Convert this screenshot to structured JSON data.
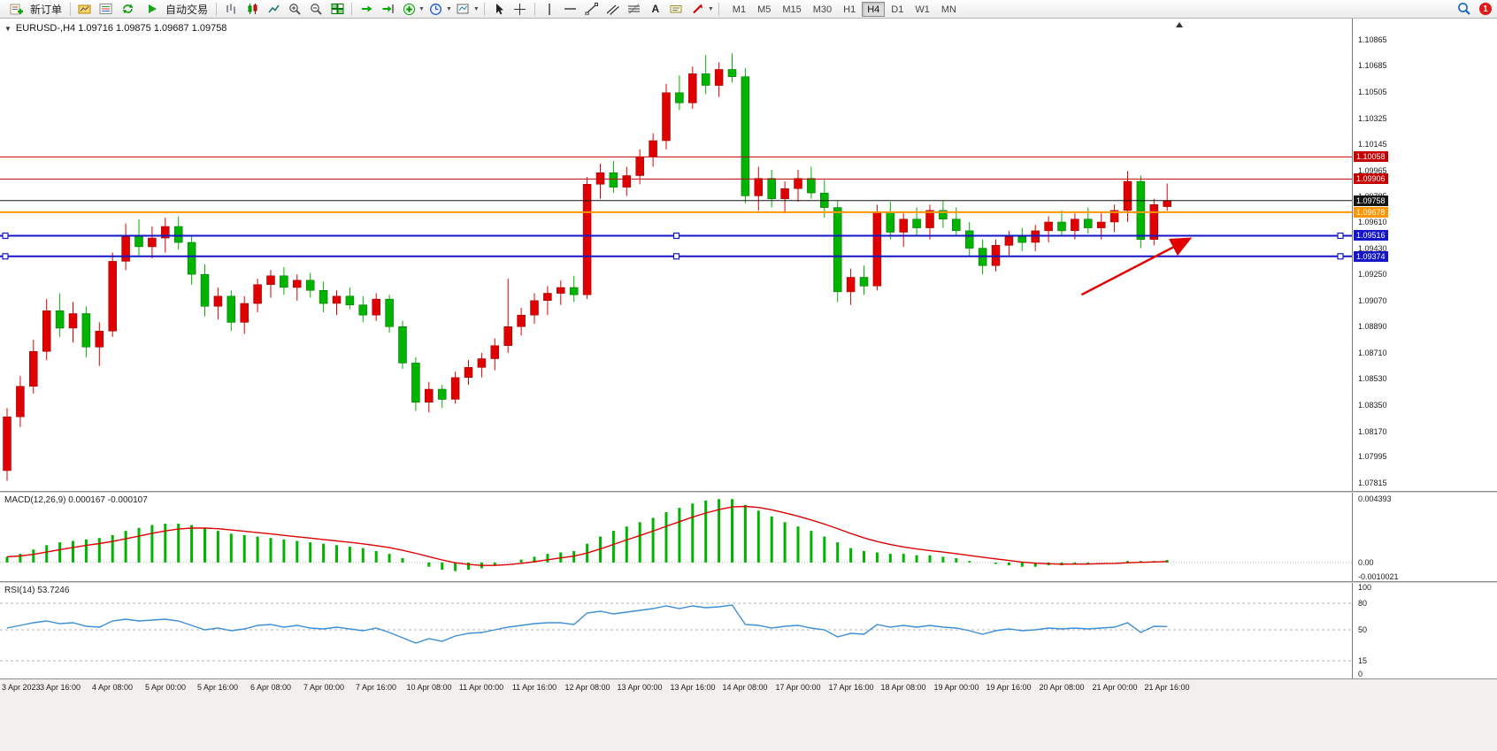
{
  "toolbar": {
    "new_order_label": "新订单",
    "autotrade_label": "自动交易",
    "timeframes": [
      "M1",
      "M5",
      "M15",
      "M30",
      "H1",
      "H4",
      "D1",
      "W1",
      "MN"
    ],
    "active_timeframe": "H4",
    "notification_count": "1",
    "icon_names": [
      "new-order-icon",
      "profiles-icon",
      "market-watch-icon",
      "refresh-icon",
      "autotrade-play-icon",
      "bar-chart-icon",
      "candlestick-chart-icon",
      "line-chart-icon",
      "zoom-in-icon",
      "zoom-out-icon",
      "tile-windows-icon",
      "auto-scroll-icon",
      "shift-chart-icon",
      "indicators-icon",
      "periods-icon",
      "templates-icon",
      "cursor-icon",
      "crosshair-icon",
      "vertical-line-icon",
      "horizontal-line-icon",
      "trendline-icon",
      "equidistant-channel-icon",
      "fibonacci-icon",
      "text-icon",
      "text-label-icon",
      "arrows-dropdown-icon",
      "search-icon"
    ]
  },
  "chart": {
    "header": "EURUSD-,H4  1.09716 1.09875 1.09687 1.09758"
  },
  "chart_data": [
    {
      "type": "candlestick",
      "title": "EURUSD- H4",
      "symbol": "EURUSD-",
      "period": "H4",
      "ohlc_display": {
        "open": 1.09716,
        "high": 1.09875,
        "low": 1.09687,
        "close": 1.09758
      },
      "ylim": [
        1.0776,
        1.1101
      ],
      "grid": false,
      "bull_color": "#e00000",
      "bear_color": "#00b400",
      "y_ticks": [
        "1.10865",
        "1.10685",
        "1.10505",
        "1.10325",
        "1.10145",
        "1.09965",
        "1.09785",
        "1.09610",
        "1.09430",
        "1.09250",
        "1.09070",
        "1.08890",
        "1.08710",
        "1.08530",
        "1.08350",
        "1.08170",
        "1.07995",
        "1.07815"
      ],
      "x_labels": [
        "3 Apr 2023",
        "3 Apr 16:00",
        "4 Apr 08:00",
        "5 Apr 00:00",
        "5 Apr 16:00",
        "6 Apr 08:00",
        "7 Apr 00:00",
        "7 Apr 16:00",
        "10 Apr 08:00",
        "11 Apr 00:00",
        "11 Apr 16:00",
        "12 Apr 08:00",
        "13 Apr 00:00",
        "13 Apr 16:00",
        "14 Apr 08:00",
        "17 Apr 00:00",
        "17 Apr 16:00",
        "18 Apr 08:00",
        "19 Apr 00:00",
        "19 Apr 16:00",
        "20 Apr 08:00",
        "21 Apr 00:00",
        "21 Apr 16:00"
      ],
      "hlines": [
        {
          "price": 1.10058,
          "label": "1.10058",
          "color": "#c40000",
          "width": 1,
          "selected": false
        },
        {
          "price": 1.09906,
          "label": "1.09906",
          "color": "#c40000",
          "width": 1,
          "selected": false
        },
        {
          "price": 1.09758,
          "label": "1.09758",
          "color": "#151515",
          "width": 1,
          "selected": false
        },
        {
          "price": 1.09678,
          "label": "1.09678",
          "color": "#ff9500",
          "width": 2,
          "selected": false
        },
        {
          "price": 1.09516,
          "label": "1.09516",
          "color": "#1616c8",
          "width": 2,
          "selected": true
        },
        {
          "price": 1.09374,
          "label": "1.09374",
          "color": "#1616c8",
          "width": 2,
          "selected": true
        }
      ],
      "arrow": {
        "x1_index": 81.5,
        "y1_price": 1.0911,
        "x2_index": 89.6,
        "y2_price": 1.0949,
        "color": "#e00000"
      },
      "candles": [
        [
          1.079,
          1.0833,
          1.0783,
          1.0827
        ],
        [
          1.0827,
          1.0855,
          1.082,
          1.0848
        ],
        [
          1.0848,
          1.088,
          1.0843,
          1.0872
        ],
        [
          1.0872,
          1.0908,
          1.0866,
          1.09
        ],
        [
          1.09,
          1.0912,
          1.0882,
          1.0888
        ],
        [
          1.0888,
          1.0906,
          1.0878,
          1.0898
        ],
        [
          1.0898,
          1.0903,
          1.0868,
          1.0875
        ],
        [
          1.0875,
          1.0892,
          1.0862,
          1.0886
        ],
        [
          1.0886,
          1.094,
          1.0882,
          1.0934
        ],
        [
          1.0934,
          1.096,
          1.0928,
          1.0952
        ],
        [
          1.0952,
          1.0963,
          1.0938,
          1.0944
        ],
        [
          1.0944,
          1.0958,
          1.0936,
          1.095
        ],
        [
          1.095,
          1.0964,
          1.094,
          1.0958
        ],
        [
          1.0958,
          1.0965,
          1.0942,
          1.0947
        ],
        [
          1.0947,
          1.0952,
          1.0918,
          1.0925
        ],
        [
          1.0925,
          1.0932,
          1.0896,
          1.0903
        ],
        [
          1.0903,
          1.0916,
          1.0894,
          1.091
        ],
        [
          1.091,
          1.0914,
          1.0886,
          1.0892
        ],
        [
          1.0892,
          1.091,
          1.0884,
          1.0905
        ],
        [
          1.0905,
          1.0922,
          1.0899,
          1.0918
        ],
        [
          1.0918,
          1.0928,
          1.0909,
          1.0924
        ],
        [
          1.0924,
          1.093,
          1.0911,
          1.0916
        ],
        [
          1.0916,
          1.0925,
          1.0907,
          1.0921
        ],
        [
          1.0921,
          1.0926,
          1.0909,
          1.0914
        ],
        [
          1.0914,
          1.092,
          1.0899,
          1.0905
        ],
        [
          1.0905,
          1.0914,
          1.0897,
          1.091
        ],
        [
          1.091,
          1.0916,
          1.0901,
          1.0904
        ],
        [
          1.0904,
          1.091,
          1.0892,
          1.0897
        ],
        [
          1.0897,
          1.0912,
          1.0893,
          1.0908
        ],
        [
          1.0908,
          1.0911,
          1.0885,
          1.0889
        ],
        [
          1.0889,
          1.0893,
          1.086,
          1.0864
        ],
        [
          1.0864,
          1.0868,
          1.0831,
          1.0837
        ],
        [
          1.0837,
          1.0851,
          1.083,
          1.0846
        ],
        [
          1.0846,
          1.0849,
          1.0833,
          1.0839
        ],
        [
          1.0839,
          1.0858,
          1.0836,
          1.0854
        ],
        [
          1.0854,
          1.0866,
          1.0849,
          1.0861
        ],
        [
          1.0861,
          1.0871,
          1.0854,
          1.0867
        ],
        [
          1.0867,
          1.0881,
          1.0859,
          1.0876
        ],
        [
          1.0876,
          1.0922,
          1.0871,
          1.0889
        ],
        [
          1.0889,
          1.0902,
          1.0883,
          1.0897
        ],
        [
          1.0897,
          1.0912,
          1.0891,
          1.0907
        ],
        [
          1.0907,
          1.0917,
          1.0897,
          1.0912
        ],
        [
          1.0912,
          1.0921,
          1.0904,
          1.0916
        ],
        [
          1.0916,
          1.0924,
          1.0906,
          1.0911
        ],
        [
          1.0911,
          1.0992,
          1.0908,
          1.0987
        ],
        [
          1.0987,
          1.1001,
          1.0977,
          1.0995
        ],
        [
          1.0995,
          1.1003,
          1.0981,
          1.0985
        ],
        [
          1.0985,
          1.0999,
          1.0979,
          1.0993
        ],
        [
          1.0993,
          1.1011,
          1.0987,
          1.1006
        ],
        [
          1.1006,
          1.1022,
          1.0999,
          1.1017
        ],
        [
          1.1017,
          1.1056,
          1.1011,
          1.105
        ],
        [
          1.105,
          1.1062,
          1.1038,
          1.1043
        ],
        [
          1.1043,
          1.1068,
          1.1039,
          1.1063
        ],
        [
          1.1063,
          1.1076,
          1.1049,
          1.1055
        ],
        [
          1.1055,
          1.1071,
          1.1047,
          1.1066
        ],
        [
          1.1066,
          1.1077,
          1.1057,
          1.1061
        ],
        [
          1.1061,
          1.1067,
          1.0974,
          1.0979
        ],
        [
          1.0979,
          1.0999,
          1.0969,
          1.0991
        ],
        [
          1.0991,
          1.0997,
          1.0971,
          1.0977
        ],
        [
          1.0977,
          1.0989,
          1.0967,
          1.0984
        ],
        [
          1.0984,
          1.0997,
          1.0975,
          1.0991
        ],
        [
          1.0991,
          1.0999,
          1.0977,
          1.0981
        ],
        [
          1.0981,
          1.099,
          1.0964,
          1.0971
        ],
        [
          1.0971,
          1.0976,
          1.0906,
          1.0913
        ],
        [
          1.0913,
          1.0929,
          1.0904,
          1.0923
        ],
        [
          1.0923,
          1.0931,
          1.0911,
          1.0917
        ],
        [
          1.0917,
          1.0973,
          1.0914,
          1.0968
        ],
        [
          1.0968,
          1.0975,
          1.0949,
          1.0954
        ],
        [
          1.0954,
          1.0967,
          1.0944,
          1.0963
        ],
        [
          1.0963,
          1.0971,
          1.0951,
          1.0957
        ],
        [
          1.0957,
          1.0973,
          1.0949,
          1.0969
        ],
        [
          1.0969,
          1.0976,
          1.0957,
          1.0963
        ],
        [
          1.0963,
          1.0971,
          1.0951,
          1.0955
        ],
        [
          1.0955,
          1.0961,
          1.0937,
          1.0943
        ],
        [
          1.0943,
          1.0949,
          1.0925,
          1.0931
        ],
        [
          1.0931,
          1.0949,
          1.0927,
          1.0945
        ],
        [
          1.0945,
          1.0955,
          1.0937,
          1.0951
        ],
        [
          1.0951,
          1.0957,
          1.0941,
          1.0947
        ],
        [
          1.0947,
          1.0959,
          1.0941,
          1.0955
        ],
        [
          1.0955,
          1.0965,
          1.0947,
          1.0961
        ],
        [
          1.0961,
          1.0969,
          1.0951,
          1.0955
        ],
        [
          1.0955,
          1.0967,
          1.0949,
          1.0963
        ],
        [
          1.0963,
          1.0971,
          1.0953,
          1.0957
        ],
        [
          1.0957,
          1.0967,
          1.0949,
          1.0961
        ],
        [
          1.0961,
          1.0973,
          1.0954,
          1.0969
        ],
        [
          1.0969,
          1.0996,
          1.0961,
          1.0989
        ],
        [
          1.0989,
          1.0993,
          1.0943,
          1.0949
        ],
        [
          1.0949,
          1.0977,
          1.0945,
          1.0973
        ],
        [
          1.09716,
          1.09875,
          1.09687,
          1.09758
        ]
      ]
    },
    {
      "type": "bar",
      "indicator": "MACD",
      "label": "MACD(12,26,9) 0.000167 -0.000107",
      "params": [
        12,
        26,
        9
      ],
      "current_main": 0.000167,
      "current_signal": -0.000107,
      "ylim": [
        -0.0013,
        0.00485
      ],
      "y_ticks": [
        "0.004393",
        "0.00",
        "-0.0010021"
      ],
      "tick_values": [
        0.004393,
        0,
        -0.0010021
      ],
      "histogram_color": "#00b400",
      "signal_color": "#dd0000",
      "values": [
        0.0004,
        0.0006,
        0.0009,
        0.0012,
        0.0014,
        0.0015,
        0.0016,
        0.0017,
        0.0019,
        0.0022,
        0.0024,
        0.0026,
        0.0027,
        0.0027,
        0.0026,
        0.0024,
        0.0022,
        0.002,
        0.0019,
        0.0018,
        0.0017,
        0.0016,
        0.0015,
        0.0014,
        0.0013,
        0.0012,
        0.0011,
        0.001,
        0.0008,
        0.0006,
        0.0003,
        0.0,
        -0.0003,
        -0.0005,
        -0.0006,
        -0.0005,
        -0.0004,
        -0.0002,
        0.0,
        0.0002,
        0.0004,
        0.0006,
        0.0007,
        0.0008,
        0.0013,
        0.0018,
        0.0022,
        0.0025,
        0.0028,
        0.0031,
        0.0035,
        0.0038,
        0.0041,
        0.0043,
        0.0044,
        0.0044,
        0.004,
        0.0036,
        0.0032,
        0.0028,
        0.0025,
        0.0022,
        0.0018,
        0.0014,
        0.001,
        0.0008,
        0.0007,
        0.0006,
        0.0006,
        0.0005,
        0.0005,
        0.0004,
        0.0003,
        0.0001,
        0.0,
        -0.0001,
        -0.0002,
        -0.0003,
        -0.0003,
        -0.0002,
        -0.0002,
        -0.0001,
        -0.0001,
        0.0,
        0.0,
        0.0001,
        0.0001,
        0.0001,
        0.000167
      ]
    },
    {
      "type": "line",
      "indicator": "RSI",
      "label": "RSI(14) 53.7246",
      "params": [
        14
      ],
      "current_value": 53.7246,
      "ylim": [
        0,
        100
      ],
      "y_ticks": [
        "100",
        "80",
        "50",
        "15",
        "0"
      ],
      "tick_values": [
        100,
        80,
        50,
        15,
        0
      ],
      "levels": [
        80,
        50,
        15
      ],
      "line_color": "#3d8fd6",
      "values": [
        52,
        55,
        58,
        60,
        57,
        58,
        54,
        53,
        60,
        62,
        60,
        61,
        62,
        60,
        55,
        50,
        52,
        49,
        51,
        55,
        56,
        53,
        55,
        52,
        51,
        53,
        51,
        49,
        52,
        47,
        41,
        35,
        40,
        37,
        43,
        46,
        47,
        50,
        53,
        55,
        57,
        58,
        58,
        56,
        69,
        71,
        68,
        70,
        72,
        74,
        77,
        74,
        77,
        75,
        76,
        78,
        56,
        55,
        52,
        54,
        55,
        52,
        50,
        42,
        46,
        45,
        56,
        53,
        55,
        53,
        55,
        53,
        52,
        49,
        45,
        49,
        51,
        49,
        50,
        52,
        51,
        52,
        51,
        52,
        53,
        58,
        47,
        54,
        53.7246
      ]
    }
  ]
}
